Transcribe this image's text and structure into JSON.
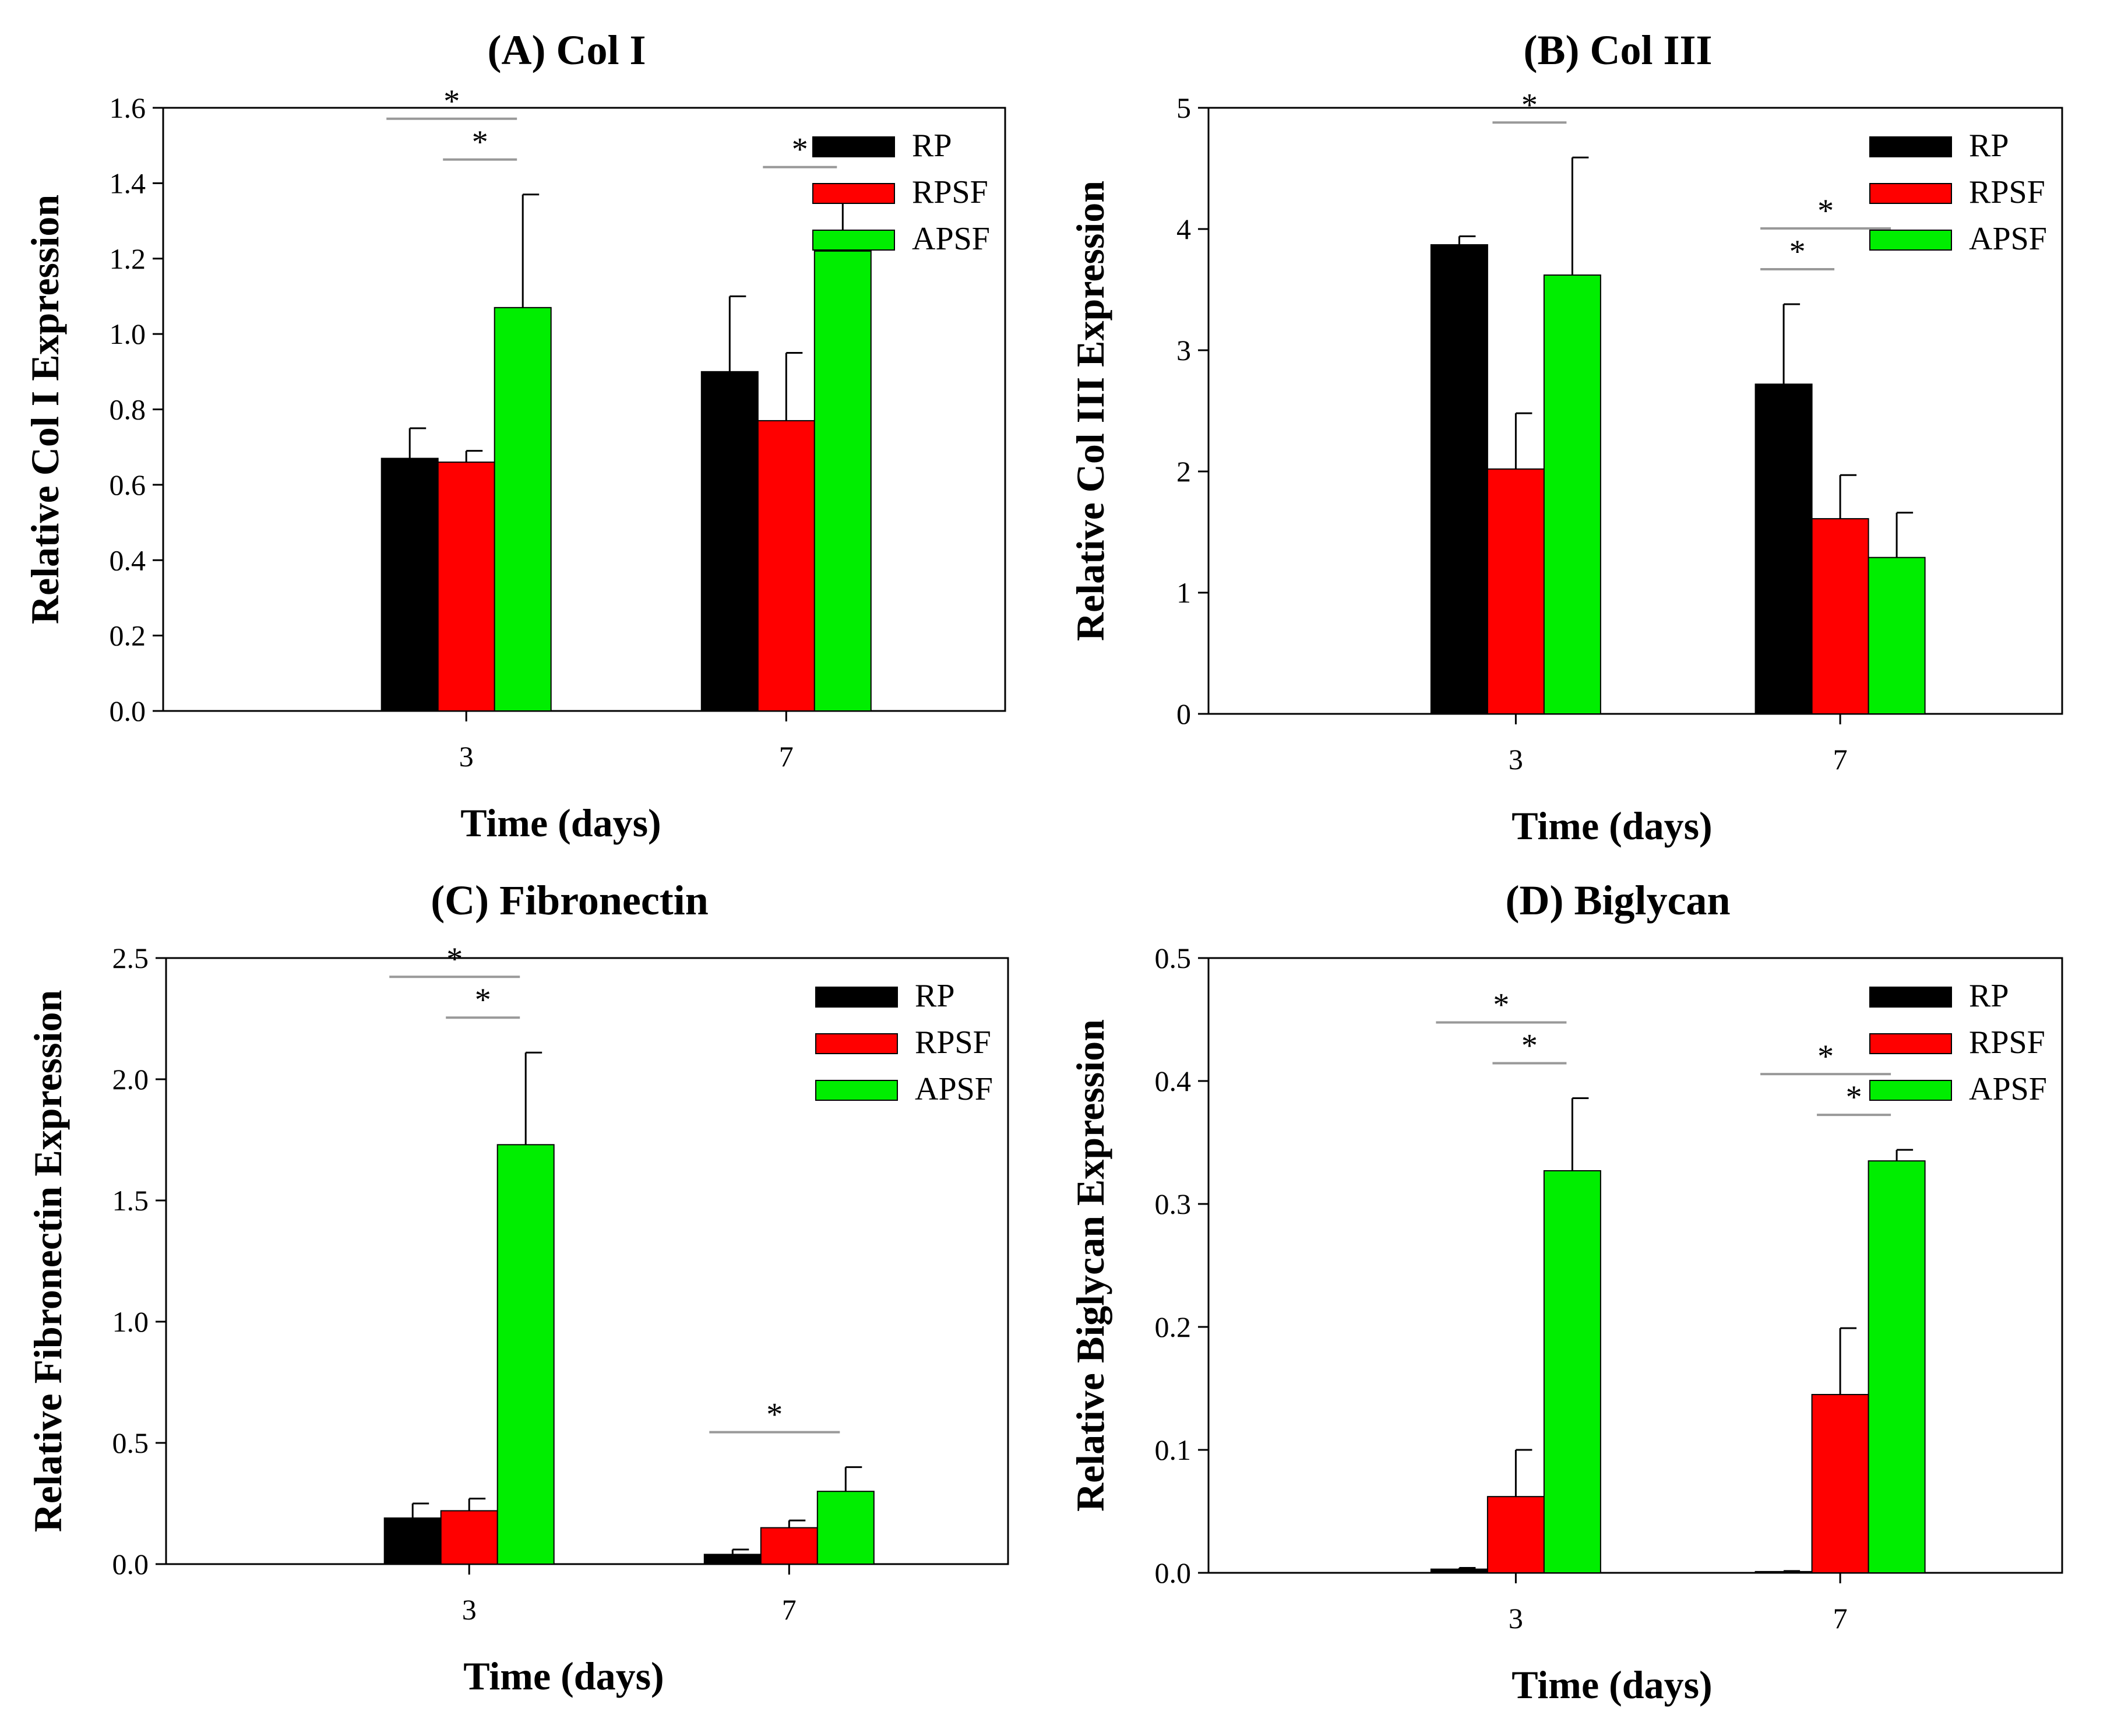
{
  "colors": {
    "RP": "#000000",
    "RPSF": "#ff0000",
    "APSF": "#00ee00",
    "axis": "#000000",
    "significance_line": "#999999"
  },
  "chart_data": [
    {
      "type": "bar",
      "title": "(A) Col I",
      "xlabel": "Time (days)",
      "ylabel": "Relative Col I Expression",
      "categories": [
        "3",
        "7"
      ],
      "ylim": [
        0,
        1.6
      ],
      "yticks": [
        "0.0",
        "0.2",
        "0.4",
        "0.6",
        "0.8",
        "1.0",
        "1.2",
        "1.4",
        "1.6"
      ],
      "grid": false,
      "legend_position": "top-right",
      "series": [
        {
          "name": "RP",
          "values": [
            0.67,
            0.9
          ],
          "errors": [
            0.08,
            0.2
          ]
        },
        {
          "name": "RPSF",
          "values": [
            0.66,
            0.77
          ],
          "errors": [
            0.03,
            0.18
          ]
        },
        {
          "name": "APSF",
          "values": [
            1.07,
            1.22
          ],
          "errors": [
            0.3,
            0.13
          ]
        }
      ],
      "significance": [
        {
          "category": "3",
          "between": [
            "RP",
            "APSF"
          ],
          "label": "*"
        },
        {
          "category": "3",
          "between": [
            "RPSF",
            "APSF"
          ],
          "label": "*"
        },
        {
          "category": "7",
          "between": [
            "RPSF",
            "APSF"
          ],
          "label": "*"
        }
      ]
    },
    {
      "type": "bar",
      "title": "(B) Col III",
      "xlabel": "Time (days)",
      "ylabel": "Relative Col III Expression",
      "categories": [
        "3",
        "7"
      ],
      "ylim": [
        0,
        5
      ],
      "yticks": [
        "0",
        "1",
        "2",
        "3",
        "4",
        "5"
      ],
      "grid": false,
      "legend_position": "top-right",
      "series": [
        {
          "name": "RP",
          "values": [
            3.87,
            2.72
          ],
          "errors": [
            0.07,
            0.66
          ]
        },
        {
          "name": "RPSF",
          "values": [
            2.02,
            1.61
          ],
          "errors": [
            0.46,
            0.36
          ]
        },
        {
          "name": "APSF",
          "values": [
            3.62,
            1.29
          ],
          "errors": [
            0.97,
            0.37
          ]
        }
      ],
      "significance": [
        {
          "category": "3",
          "between": [
            "RPSF",
            "APSF"
          ],
          "label": "*"
        },
        {
          "category": "7",
          "between": [
            "RP",
            "APSF"
          ],
          "label": "*"
        },
        {
          "category": "7",
          "between": [
            "RP",
            "RPSF"
          ],
          "label": "*"
        }
      ]
    },
    {
      "type": "bar",
      "title": "(C) Fibronectin",
      "xlabel": "Time (days)",
      "ylabel": "Relative Fibronectin Expression",
      "categories": [
        "3",
        "7"
      ],
      "ylim": [
        0,
        2.5
      ],
      "yticks": [
        "0.0",
        "0.5",
        "1.0",
        "1.5",
        "2.0",
        "2.5"
      ],
      "grid": false,
      "legend_position": "top-right",
      "series": [
        {
          "name": "RP",
          "values": [
            0.19,
            0.04
          ],
          "errors": [
            0.06,
            0.02
          ]
        },
        {
          "name": "RPSF",
          "values": [
            0.22,
            0.15
          ],
          "errors": [
            0.05,
            0.03
          ]
        },
        {
          "name": "APSF",
          "values": [
            1.73,
            0.3
          ],
          "errors": [
            0.38,
            0.1
          ]
        }
      ],
      "significance": [
        {
          "category": "3",
          "between": [
            "RP",
            "APSF"
          ],
          "label": "*"
        },
        {
          "category": "3",
          "between": [
            "RPSF",
            "APSF"
          ],
          "label": "*"
        },
        {
          "category": "7",
          "between": [
            "RP",
            "APSF"
          ],
          "label": "*"
        }
      ]
    },
    {
      "type": "bar",
      "title": "(D) Biglycan",
      "xlabel": "Time (days)",
      "ylabel": "Relative Biglycan Expression",
      "categories": [
        "3",
        "7"
      ],
      "ylim": [
        0,
        0.5
      ],
      "yticks": [
        "0.0",
        "0.1",
        "0.2",
        "0.3",
        "0.4",
        "0.5"
      ],
      "grid": false,
      "legend_position": "top-right",
      "series": [
        {
          "name": "RP",
          "values": [
            0.003,
            0.001
          ],
          "errors": [
            0.001,
            0.0005
          ]
        },
        {
          "name": "RPSF",
          "values": [
            0.062,
            0.145
          ],
          "errors": [
            0.038,
            0.054
          ]
        },
        {
          "name": "APSF",
          "values": [
            0.327,
            0.335
          ],
          "errors": [
            0.059,
            0.009
          ]
        }
      ],
      "significance": [
        {
          "category": "3",
          "between": [
            "RP",
            "APSF"
          ],
          "label": "*"
        },
        {
          "category": "3",
          "between": [
            "RPSF",
            "APSF"
          ],
          "label": "*"
        },
        {
          "category": "7",
          "between": [
            "RP",
            "APSF"
          ],
          "label": "*"
        },
        {
          "category": "7",
          "between": [
            "RPSF",
            "APSF"
          ],
          "label": "*"
        }
      ]
    }
  ]
}
